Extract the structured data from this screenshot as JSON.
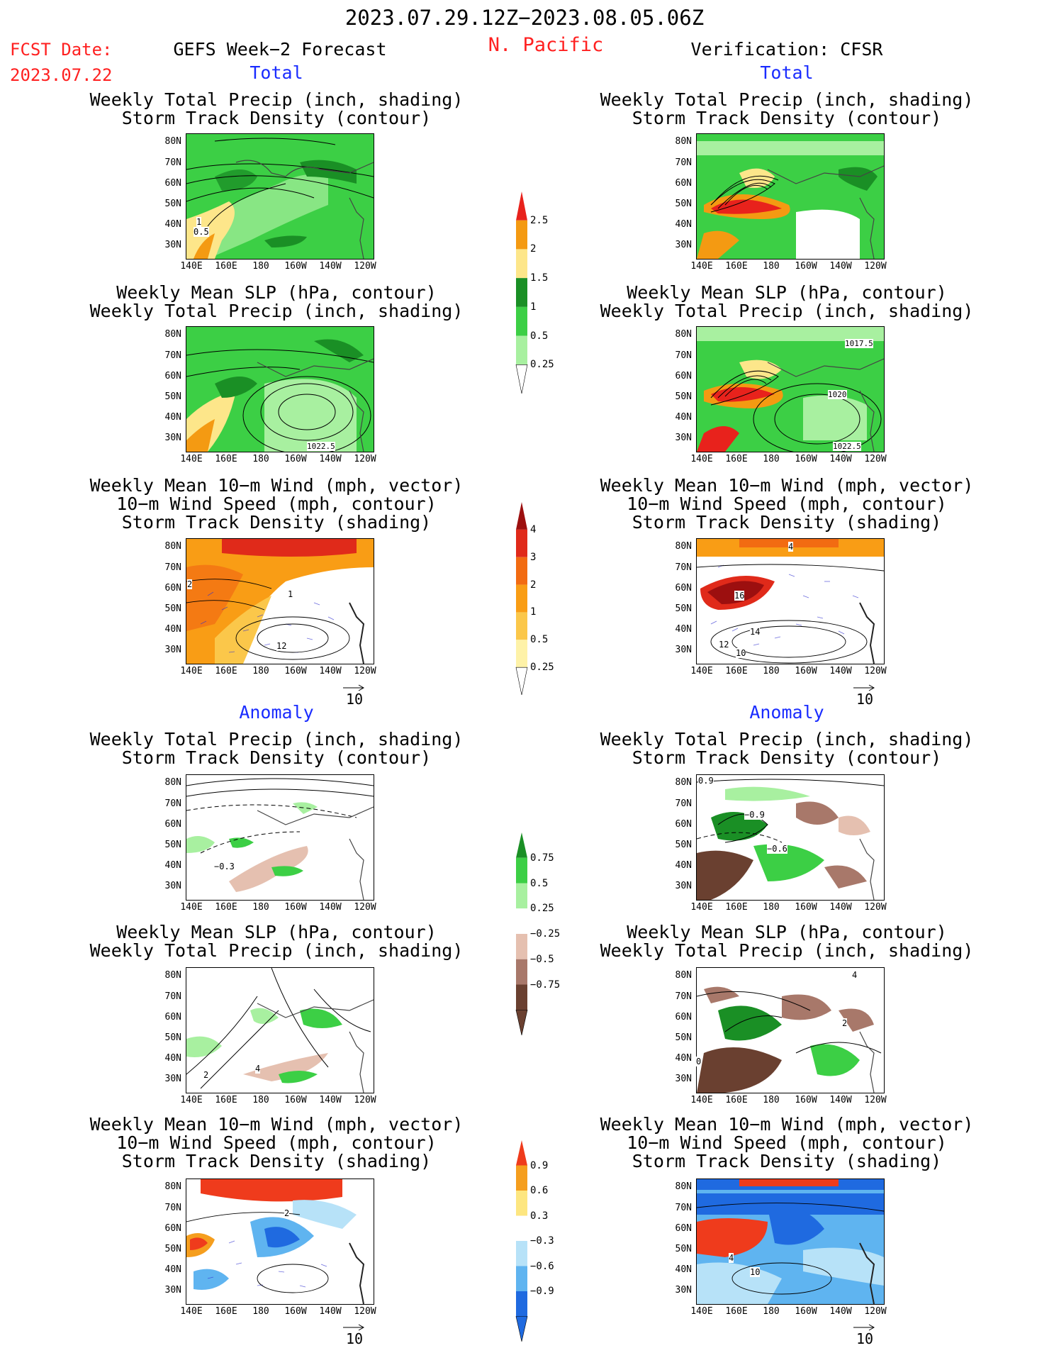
{
  "header": {
    "period": "2023.07.29.12Z−2023.08.05.06Z",
    "fcst_label": "FCST Date:",
    "fcst_date": "2023.07.22",
    "left_title": "GEFS Week−2 Forecast",
    "region": "N. Pacific",
    "right_title": "Verification: CFSR"
  },
  "sections": {
    "total": "Total",
    "anomaly": "Anomaly"
  },
  "panel_titles": {
    "precip_track": [
      "Weekly Total Precip (inch, shading)",
      "Storm Track Density (contour)"
    ],
    "slp_precip": [
      "Weekly Mean SLP (hPa, contour)",
      "Weekly Total Precip (inch, shading)"
    ],
    "wind_track": [
      "Weekly Mean 10−m Wind (mph, vector)",
      "10−m Wind Speed (mph, contour)",
      "Storm Track Density (shading)"
    ]
  },
  "axes": {
    "lat_labels": [
      "80N",
      "70N",
      "60N",
      "50N",
      "40N",
      "30N"
    ],
    "lon_labels": [
      "140E",
      "160E",
      "180",
      "160W",
      "140W",
      "120W"
    ]
  },
  "vector_reference": "10",
  "colorbars": {
    "precip_total": {
      "ticks": [
        "2.5",
        "2",
        "1.5",
        "1",
        "0.5",
        "0.25"
      ],
      "colors": [
        "#e8221c",
        "#f49a12",
        "#fde68a",
        "#1a8f25",
        "#3ccf45",
        "#a8f0a0"
      ]
    },
    "track_total": {
      "ticks": [
        "4",
        "3",
        "2",
        "1",
        "0.5",
        "0.25"
      ],
      "colors": [
        "#9c0f0f",
        "#e02a1a",
        "#f26b12",
        "#f99d15",
        "#fbc74a",
        "#fef2a8"
      ]
    },
    "precip_anom": {
      "ticks": [
        "0.75",
        "0.5",
        "0.25",
        "−0.25",
        "−0.5",
        "−0.75"
      ],
      "colors": [
        "#1a8f25",
        "#3ccf45",
        "#a8f0a0",
        "#ffffff",
        "#e5c0b0",
        "#a8786a",
        "#6a4030"
      ]
    },
    "track_anom": {
      "ticks": [
        "0.9",
        "0.6",
        "0.3",
        "−0.3",
        "−0.6",
        "−0.9"
      ],
      "colors": [
        "#ef3b1c",
        "#f59e1e",
        "#fde680",
        "#ffffff",
        "#b7e2f8",
        "#5fb4f0",
        "#1f6ae0"
      ]
    }
  },
  "contour_labels": {
    "fcst_total_precip": [
      "1",
      "0.5"
    ],
    "fcst_total_slp": [
      "1022.5"
    ],
    "fcst_total_wind": [
      "2",
      "1",
      "12"
    ],
    "cfsr_total_slp": [
      "1017.5",
      "1020",
      "1022.5"
    ],
    "cfsr_total_wind": [
      "4",
      "16",
      "14",
      "12",
      "10"
    ],
    "fcst_anom_precip": [
      "−0.3"
    ],
    "fcst_anom_slp": [
      "2",
      "4"
    ],
    "cfsr_anom_precip": [
      "0.9",
      "−0.9",
      "−0.6"
    ],
    "cfsr_anom_slp": [
      "4",
      "2",
      "0"
    ],
    "fcst_anom_wind": [
      "2"
    ],
    "cfsr_anom_wind": [
      "4",
      "10"
    ]
  }
}
